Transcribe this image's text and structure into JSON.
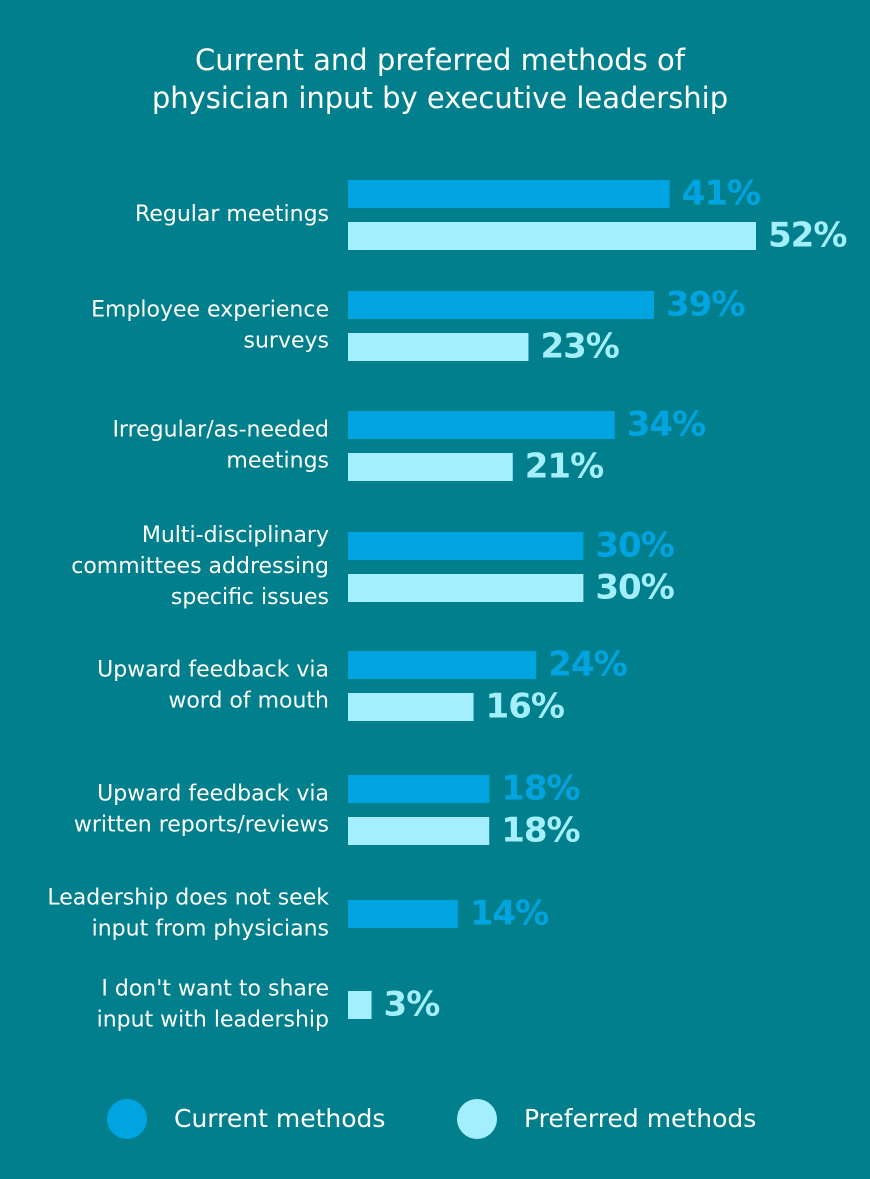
{
  "chart_data": {
    "type": "bar",
    "orientation": "horizontal",
    "title": "Current and preferred methods of\nphysician input by executive leadership",
    "categories": [
      "Regular meetings",
      "Employee experience\nsurveys",
      "Irregular/as-needed\nmeetings",
      "Multi-disciplinary\ncommittees addressing\nspecific issues",
      "Upward feedback via\nword of mouth",
      "Upward feedback via\nwritten reports/reviews",
      "Leadership does not seek\ninput from physicians",
      "I don't want to share\ninput with leadership"
    ],
    "series": [
      {
        "name": "Current methods",
        "color": "#00a4e0",
        "values": [
          41,
          39,
          34,
          30,
          24,
          18,
          14,
          null
        ],
        "value_labels": [
          "41%",
          "39%",
          "34%",
          "30%",
          "24%",
          "18%",
          "14%",
          null
        ]
      },
      {
        "name": "Preferred methods",
        "color": "#a3efff",
        "values": [
          52,
          23,
          21,
          30,
          16,
          18,
          null,
          3
        ],
        "value_labels": [
          "52%",
          "23%",
          "21%",
          "30%",
          "16%",
          "18%",
          null,
          "3%"
        ]
      }
    ],
    "legend": "bottom"
  }
}
